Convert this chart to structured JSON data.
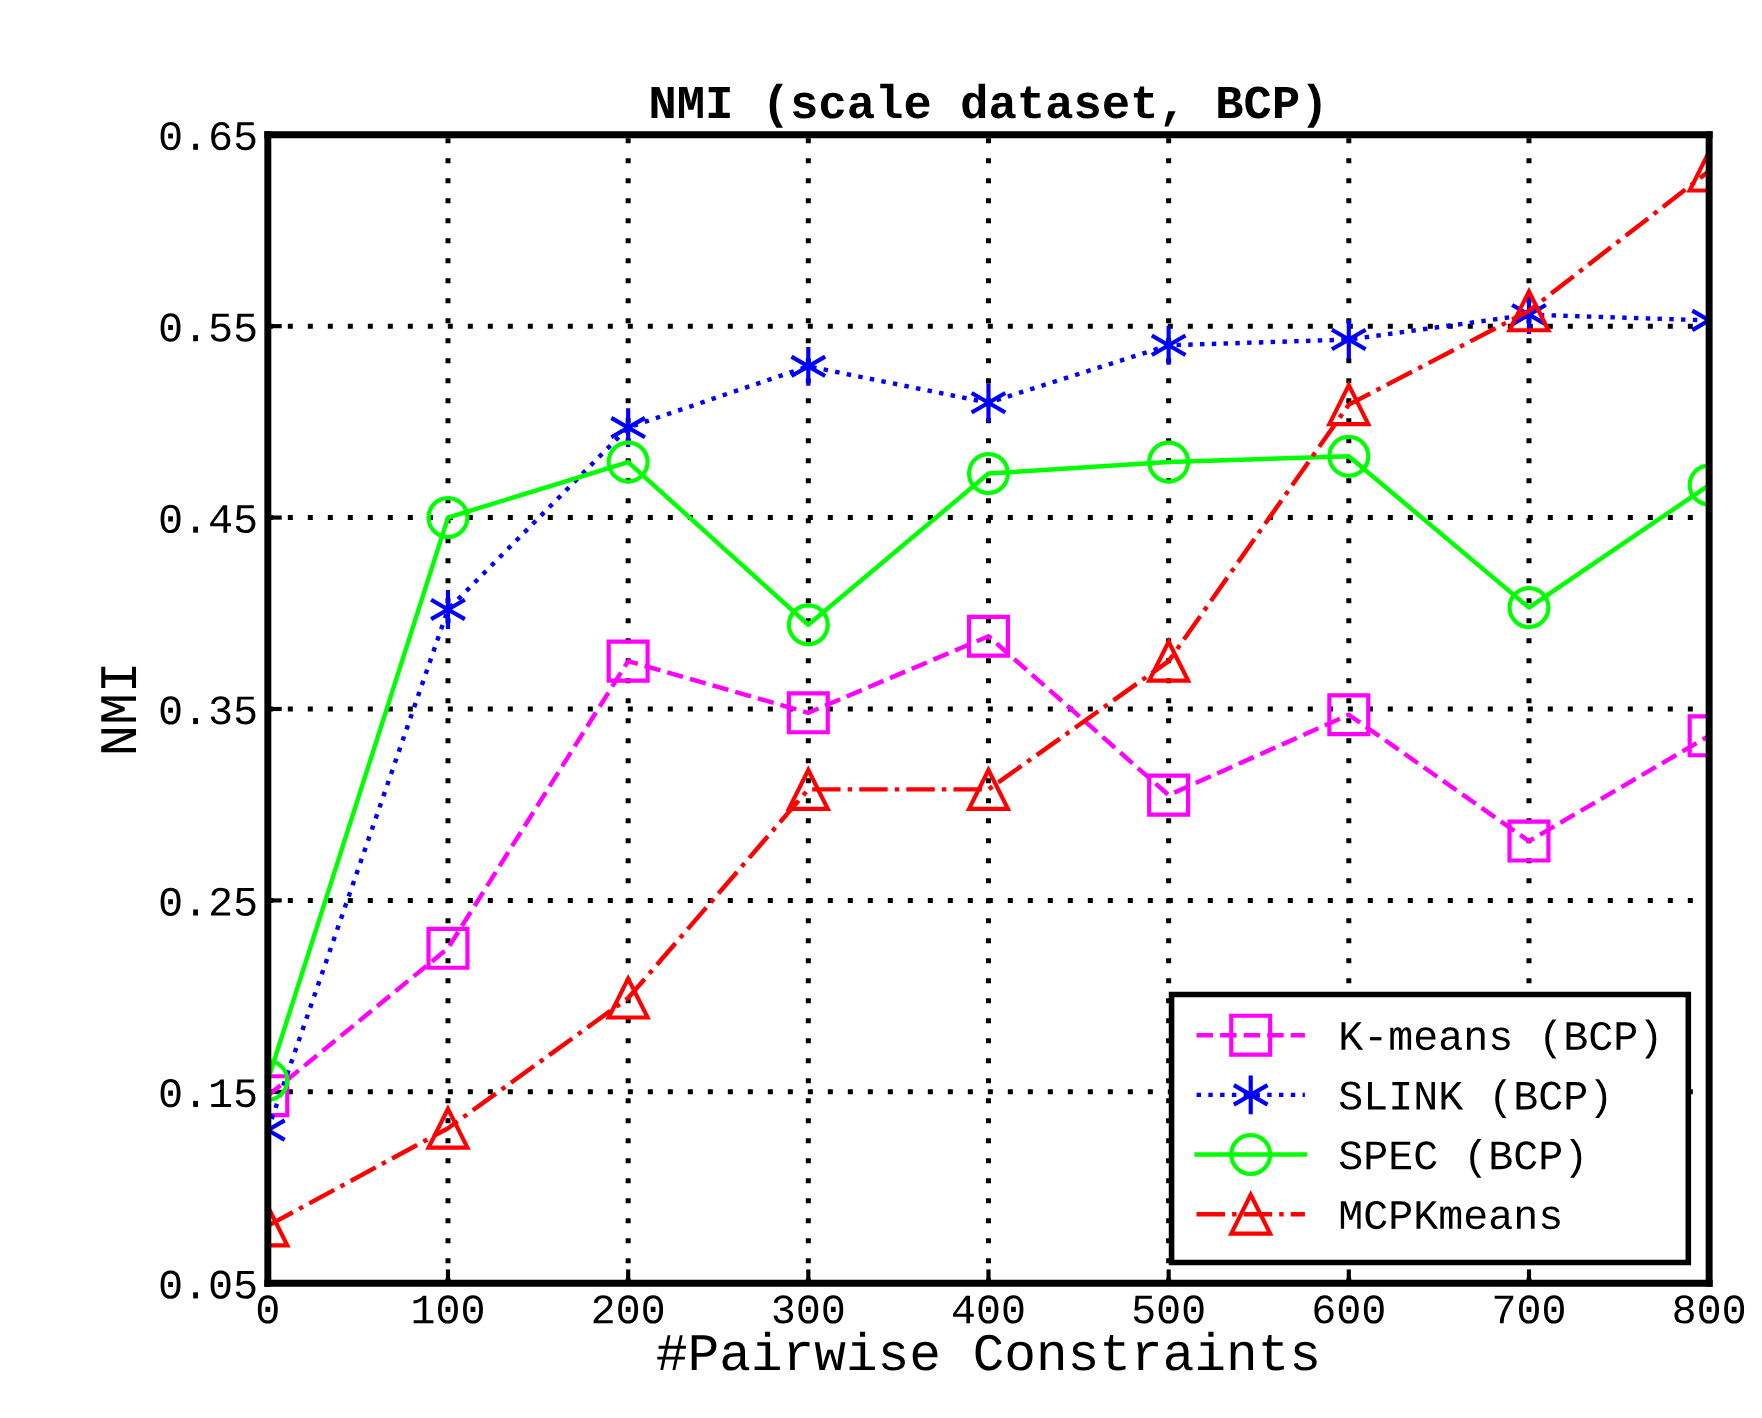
{
  "chart_data": {
    "type": "line",
    "title": "NMI (scale dataset, BCP)",
    "xlabel": "#Pairwise Constraints",
    "ylabel": "NMI",
    "x": [
      0,
      100,
      200,
      300,
      400,
      500,
      600,
      700,
      800
    ],
    "series": [
      {
        "name": "K-means (BCP)",
        "color": "#ff00ff",
        "marker": "square",
        "line_style": "dashed",
        "values": [
          0.148,
          0.225,
          0.375,
          0.348,
          0.388,
          0.305,
          0.347,
          0.281,
          0.336
        ]
      },
      {
        "name": "SLINK (BCP)",
        "color": "#0000ff",
        "marker": "cross",
        "line_style": "dotted",
        "values": [
          0.13,
          0.402,
          0.497,
          0.529,
          0.51,
          0.54,
          0.543,
          0.556,
          0.553
        ]
      },
      {
        "name": "SPEC (BCP)",
        "color": "#00ff00",
        "marker": "circle",
        "line_style": "solid",
        "values": [
          0.156,
          0.45,
          0.479,
          0.394,
          0.473,
          0.479,
          0.482,
          0.403,
          0.467
        ]
      },
      {
        "name": "MCPKmeans",
        "color": "#ff0000",
        "marker": "triangle",
        "line_style": "dashdot",
        "values": [
          0.08,
          0.131,
          0.199,
          0.308,
          0.308,
          0.375,
          0.509,
          0.558,
          0.631
        ]
      }
    ],
    "xlim": [
      0,
      800
    ],
    "xticks": [
      0,
      100,
      200,
      300,
      400,
      500,
      600,
      700,
      800
    ],
    "ylim": [
      0.05,
      0.65
    ],
    "yticks": [
      {
        "value": 0.05,
        "label": "0.05"
      },
      {
        "value": 0.15,
        "label": "0.15"
      },
      {
        "value": 0.25,
        "label": "0.25"
      },
      {
        "value": 0.35,
        "label": "0.35"
      },
      {
        "value": 0.45,
        "label": "0.45"
      },
      {
        "value": 0.55,
        "label": "0.55"
      },
      {
        "value": 0.65,
        "label": "0.65"
      }
    ],
    "grid": true,
    "legend": "bottom right"
  }
}
